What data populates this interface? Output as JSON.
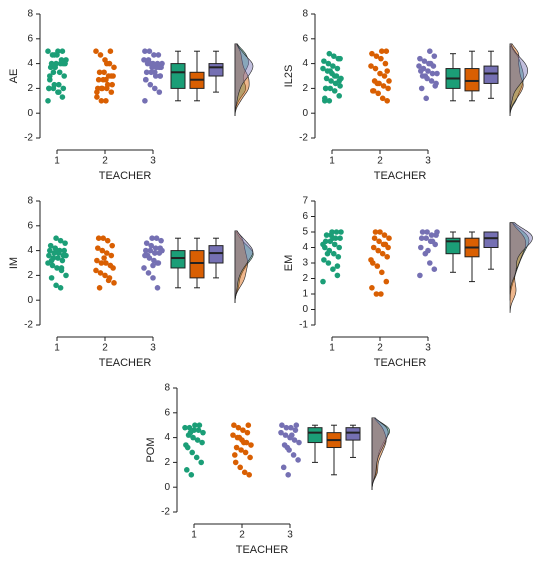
{
  "chart_data": [
    {
      "type": "raincloud",
      "ylabel": "AE",
      "xlabel": "TEACHER",
      "categories": [
        "1",
        "2",
        "3"
      ],
      "ylim": [
        -2,
        8
      ],
      "yticks": [
        -2,
        0,
        2,
        4,
        6,
        8
      ],
      "groups": [
        {
          "color": "#1b9e77",
          "values": [
            1,
            1.3,
            1.7,
            2,
            2,
            2,
            2.3,
            2.3,
            2.7,
            3,
            3.3,
            3.7,
            3.7,
            4,
            4,
            4,
            4,
            4.3,
            4.3,
            4.7,
            4.7,
            5,
            5,
            5,
            3.3,
            2,
            4,
            1.7,
            4.7,
            3
          ],
          "box": [
            1,
            2,
            3.3,
            4,
            5
          ]
        },
        {
          "color": "#d95f02",
          "values": [
            1,
            1,
            1.3,
            1.7,
            2,
            2,
            2,
            2.3,
            2.3,
            2.7,
            2.7,
            3,
            3,
            3.3,
            3.3,
            3.7,
            4,
            4.3,
            4.7,
            5,
            5,
            2.7,
            2,
            1.7,
            3,
            4
          ],
          "box": [
            1,
            2,
            2.7,
            3.3,
            5
          ]
        },
        {
          "color": "#7570b3",
          "values": [
            1,
            1.7,
            2,
            2.3,
            2.7,
            3,
            3,
            3.3,
            3.3,
            3.7,
            3.7,
            3.7,
            4,
            4,
            4,
            4,
            4.3,
            4.3,
            4.7,
            4.7,
            5,
            5,
            3.7,
            3.3,
            4,
            2.7,
            3
          ],
          "box": [
            1.7,
            3,
            3.7,
            4,
            5
          ]
        }
      ]
    },
    {
      "type": "raincloud",
      "ylabel": "IL2S",
      "xlabel": "TEACHER",
      "categories": [
        "1",
        "2",
        "3"
      ],
      "ylim": [
        -2,
        8
      ],
      "yticks": [
        -2,
        0,
        2,
        4,
        6,
        8
      ],
      "groups": [
        {
          "color": "#1b9e77",
          "values": [
            1,
            1,
            1.4,
            1.8,
            2,
            2,
            2.2,
            2.4,
            2.6,
            2.8,
            2.8,
            3,
            3.2,
            3.4,
            3.6,
            3.6,
            3.8,
            4,
            4.2,
            4.4,
            4.6,
            4.8,
            1.2,
            2.6,
            3,
            3.4,
            2,
            4.4
          ],
          "box": [
            1,
            2,
            2.8,
            3.6,
            4.8
          ]
        },
        {
          "color": "#d95f02",
          "values": [
            1,
            1.2,
            1.6,
            1.8,
            2,
            2.2,
            2.4,
            2.6,
            2.6,
            3,
            3.2,
            3.6,
            3.8,
            4,
            4.4,
            4.6,
            4.8,
            5,
            5,
            2.4,
            1.8,
            3.4
          ],
          "box": [
            1,
            1.8,
            2.6,
            3.6,
            5
          ]
        },
        {
          "color": "#7570b3",
          "values": [
            1.2,
            2,
            2.4,
            2.6,
            2.8,
            3,
            3.2,
            3.2,
            3.4,
            3.6,
            3.8,
            3.8,
            4,
            4.2,
            4.4,
            4.6,
            5,
            3,
            3.4,
            2.2,
            4
          ],
          "box": [
            1.2,
            2.4,
            3.2,
            3.8,
            5
          ]
        }
      ]
    },
    {
      "type": "raincloud",
      "ylabel": "IM",
      "xlabel": "TEACHER",
      "categories": [
        "1",
        "2",
        "3"
      ],
      "ylim": [
        -2,
        8
      ],
      "yticks": [
        -2,
        0,
        2,
        4,
        6,
        8
      ],
      "groups": [
        {
          "color": "#1b9e77",
          "values": [
            1,
            1.2,
            1.8,
            2,
            2.4,
            2.6,
            2.8,
            3,
            3.2,
            3.4,
            3.4,
            3.6,
            3.6,
            3.8,
            3.8,
            4,
            4,
            4,
            4.2,
            4.4,
            4.6,
            4.8,
            5,
            3.2,
            3.6,
            2.6,
            4
          ],
          "box": [
            1,
            2.6,
            3.4,
            4,
            5
          ]
        },
        {
          "color": "#d95f02",
          "values": [
            1,
            1.4,
            1.8,
            2,
            2.2,
            2.4,
            2.8,
            3,
            3,
            3.2,
            3.6,
            3.8,
            4,
            4.2,
            4.4,
            4.8,
            5,
            5,
            2.6,
            1.6,
            3.4
          ],
          "box": [
            1,
            1.8,
            3,
            4,
            5
          ]
        },
        {
          "color": "#7570b3",
          "values": [
            1,
            1.8,
            2.2,
            2.6,
            3,
            3.2,
            3.4,
            3.6,
            3.8,
            3.8,
            4,
            4,
            4.2,
            4.2,
            4.4,
            4.6,
            4.8,
            5,
            5,
            3.6,
            4,
            3,
            2.8
          ],
          "box": [
            1.8,
            3,
            3.8,
            4.4,
            5
          ]
        }
      ]
    },
    {
      "type": "raincloud",
      "ylabel": "EM",
      "xlabel": "TEACHER",
      "categories": [
        "1",
        "2",
        "3"
      ],
      "ylim": [
        -1,
        7
      ],
      "yticks": [
        -1,
        0,
        1,
        2,
        3,
        4,
        5,
        6,
        7
      ],
      "groups": [
        {
          "color": "#1b9e77",
          "values": [
            1.8,
            2.2,
            2.6,
            3,
            3.2,
            3.4,
            3.6,
            3.8,
            4,
            4,
            4.2,
            4.4,
            4.4,
            4.6,
            4.6,
            4.8,
            4.8,
            5,
            5,
            5,
            3.6,
            4.2,
            2.8,
            4.6
          ],
          "box": [
            2.4,
            3.6,
            4.4,
            4.6,
            5
          ]
        },
        {
          "color": "#d95f02",
          "values": [
            1,
            1,
            1.4,
            1.8,
            2.4,
            2.8,
            3,
            3.4,
            3.6,
            3.8,
            4,
            4,
            4.2,
            4.4,
            4.6,
            4.6,
            4.8,
            5,
            5,
            3.2,
            4.2
          ],
          "box": [
            1.8,
            3.4,
            4,
            4.6,
            5
          ]
        },
        {
          "color": "#7570b3",
          "values": [
            2.2,
            2.6,
            3,
            3.6,
            4,
            4.2,
            4.4,
            4.6,
            4.6,
            4.8,
            4.8,
            5,
            5,
            5,
            4.4,
            3.8
          ],
          "box": [
            2.6,
            4,
            4.6,
            5,
            5
          ]
        }
      ]
    },
    {
      "type": "raincloud",
      "ylabel": "POM",
      "xlabel": "TEACHER",
      "categories": [
        "1",
        "2",
        "3"
      ],
      "ylim": [
        -2,
        8
      ],
      "yticks": [
        -2,
        0,
        2,
        4,
        6,
        8
      ],
      "groups": [
        {
          "color": "#1b9e77",
          "values": [
            1,
            1.4,
            2,
            2.4,
            2.8,
            3.2,
            3.6,
            3.8,
            4,
            4.2,
            4.4,
            4.6,
            4.6,
            4.8,
            4.8,
            5,
            5,
            4.4,
            3.4
          ],
          "box": [
            2,
            3.6,
            4.4,
            4.8,
            5
          ]
        },
        {
          "color": "#d95f02",
          "values": [
            1,
            1.2,
            1.6,
            2,
            2.4,
            2.8,
            3,
            3.2,
            3.4,
            3.6,
            3.8,
            4,
            4.2,
            4.4,
            4.6,
            4.8,
            5,
            5,
            3.6,
            4,
            2.6
          ],
          "box": [
            1,
            3.2,
            3.8,
            4.4,
            5
          ]
        },
        {
          "color": "#7570b3",
          "values": [
            1,
            1.6,
            2.2,
            2.6,
            3,
            3.4,
            3.6,
            3.8,
            4,
            4.2,
            4.4,
            4.6,
            4.8,
            4.8,
            5,
            5,
            4.2,
            3.2
          ],
          "box": [
            2.4,
            3.8,
            4.4,
            4.8,
            5
          ]
        }
      ]
    }
  ]
}
